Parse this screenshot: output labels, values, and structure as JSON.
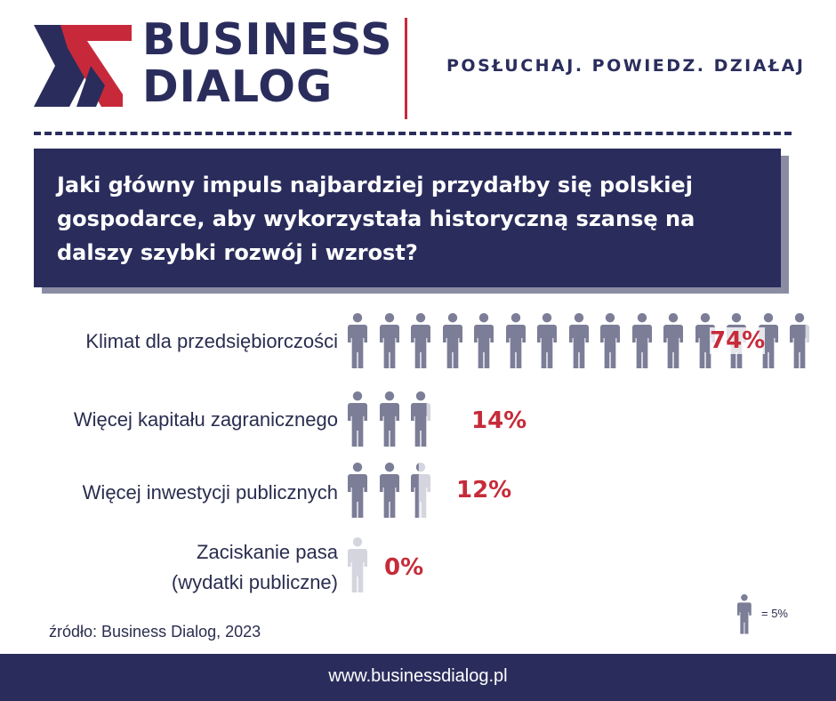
{
  "brand": {
    "name_line1": "BUSINESS",
    "name_line2": "DIALOG",
    "tagline": "POSŁUCHAJ. POWIEDZ. DZIAŁAJ",
    "navy": "#2a2d5c",
    "red": "#c8293a"
  },
  "question": "Jaki główny impuls najbardziej przydałby się polskiej gospodarce, aby wykorzystała historyczną szansę na dalszy szybki rozwój i wzrost?",
  "chart_data": {
    "type": "bar",
    "style": "pictogram",
    "unit_per_icon": 5,
    "categories": [
      "Klimat dla przedsiębiorczości",
      "Więcej kapitału zagranicznego",
      "Więcej inwestycji publicznych",
      "Zaciskanie pasa (wydatki publiczne)"
    ],
    "values": [
      74,
      14,
      12,
      0
    ],
    "value_labels": [
      "74%",
      "14%",
      "12%",
      "0%"
    ],
    "icon_color": "#7c7d97",
    "empty_icon_color": "#d4d5de",
    "value_color": "#c62b39"
  },
  "labels": {
    "row1": "Klimat dla przedsiębiorczości",
    "row2": "Więcej kapitału zagranicznego",
    "row3": "Więcej inwestycji publicznych",
    "row4_line1": "Zaciskanie pasa",
    "row4_line2": "(wydatki publiczne)"
  },
  "legend": {
    "text": "= 5%",
    "icon": "person-icon"
  },
  "source": "źródło: Business Dialog, 2023",
  "footer": {
    "url": "www.businessdialog.pl"
  }
}
